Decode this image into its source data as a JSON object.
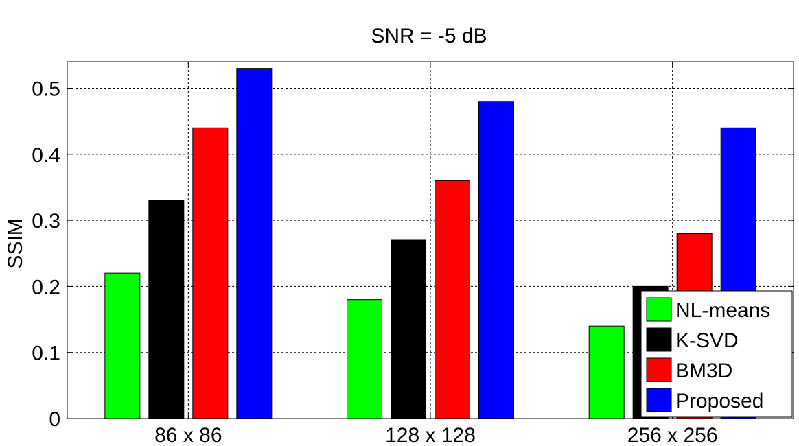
{
  "chart_data": {
    "type": "bar",
    "title": "SNR = -5 dB",
    "xlabel": "",
    "ylabel": "SSIM",
    "categories": [
      "86 x 86",
      "128 x 128",
      "256 x 256"
    ],
    "series": [
      {
        "name": "NL-means",
        "color": "#00ff00",
        "values": [
          0.22,
          0.18,
          0.14
        ]
      },
      {
        "name": "K-SVD",
        "color": "#000000",
        "values": [
          0.33,
          0.27,
          0.2
        ]
      },
      {
        "name": "BM3D",
        "color": "#ff0000",
        "values": [
          0.44,
          0.36,
          0.28
        ]
      },
      {
        "name": "Proposed",
        "color": "#0000ff",
        "values": [
          0.53,
          0.48,
          0.44
        ]
      }
    ],
    "ylim": [
      0,
      0.54
    ],
    "yticks": [
      0,
      0.1,
      0.2,
      0.3,
      0.4,
      0.5
    ],
    "ytick_labels": [
      "0",
      "0.1",
      "0.2",
      "0.3",
      "0.4",
      "0.5"
    ],
    "grid": true,
    "legend_position": "bottom-right"
  }
}
